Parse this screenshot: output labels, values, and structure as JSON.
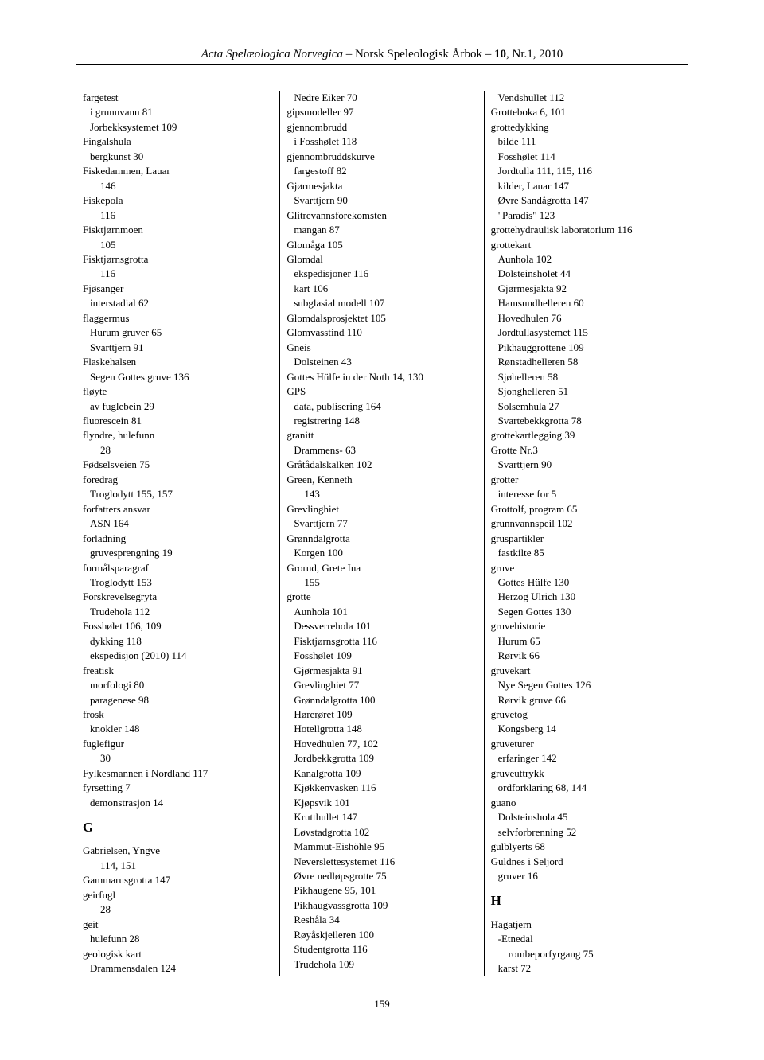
{
  "header": {
    "title_italic": "Acta Spelæologica Norvegica",
    "separator1": " – ",
    "subtitle": "Norsk Speleologisk Årbok",
    "separator2": " – ",
    "volume": "10",
    "issue": ", Nr.1, 2010"
  },
  "page_number": "159",
  "columns": [
    {
      "entries": [
        {
          "t": "fargetest",
          "l": 0
        },
        {
          "t": "i grunnvann  81",
          "l": 1
        },
        {
          "t": "Jorbekksystemet  109",
          "l": 1
        },
        {
          "t": "Fingalshula",
          "l": 0
        },
        {
          "t": "bergkunst  30",
          "l": 1
        },
        {
          "t": "Fiskedammen, Lauar",
          "l": 0
        },
        {
          "t": "146",
          "l": 2
        },
        {
          "t": "Fiskepola",
          "l": 0
        },
        {
          "t": "116",
          "l": 2
        },
        {
          "t": "Fisktjørnmoen",
          "l": 0
        },
        {
          "t": "105",
          "l": 2
        },
        {
          "t": "Fisktjørnsgrotta",
          "l": 0
        },
        {
          "t": "116",
          "l": 2
        },
        {
          "t": "Fjøsanger",
          "l": 0
        },
        {
          "t": "interstadial  62",
          "l": 1
        },
        {
          "t": "flaggermus",
          "l": 0
        },
        {
          "t": "Hurum gruver  65",
          "l": 1
        },
        {
          "t": "Svarttjern  91",
          "l": 1
        },
        {
          "t": "Flaskehalsen",
          "l": 0
        },
        {
          "t": "Segen Gottes gruve  136",
          "l": 1
        },
        {
          "t": "fløyte",
          "l": 0
        },
        {
          "t": "av fuglebein  29",
          "l": 1
        },
        {
          "t": "fluorescein  81",
          "l": 0
        },
        {
          "t": "flyndre, hulefunn",
          "l": 0
        },
        {
          "t": "28",
          "l": 2
        },
        {
          "t": "Fødselsveien  75",
          "l": 0
        },
        {
          "t": "foredrag",
          "l": 0
        },
        {
          "t": "Troglodytt  155, 157",
          "l": 1
        },
        {
          "t": "forfatters ansvar",
          "l": 0
        },
        {
          "t": "ASN  164",
          "l": 1
        },
        {
          "t": "forladning",
          "l": 0
        },
        {
          "t": "gruvesprengning  19",
          "l": 1
        },
        {
          "t": "formålsparagraf",
          "l": 0
        },
        {
          "t": "Troglodytt  153",
          "l": 1
        },
        {
          "t": "Forskrevelsegryta",
          "l": 0
        },
        {
          "t": "Trudehola  112",
          "l": 1
        },
        {
          "t": "Fosshølet  106, 109",
          "l": 0
        },
        {
          "t": "dykking  118",
          "l": 1
        },
        {
          "t": "ekspedisjon (2010)  114",
          "l": 1
        },
        {
          "t": "freatisk",
          "l": 0
        },
        {
          "t": "morfologi  80",
          "l": 1
        },
        {
          "t": "paragenese  98",
          "l": 1
        },
        {
          "t": "frosk",
          "l": 0
        },
        {
          "t": "knokler  148",
          "l": 1
        },
        {
          "t": "fuglefigur",
          "l": 0
        },
        {
          "t": "30",
          "l": 2
        },
        {
          "t": "Fylkesmannen i Nordland  117",
          "l": 0
        },
        {
          "t": "fyrsetting  7",
          "l": 0
        },
        {
          "t": "demonstrasjon  14",
          "l": 1
        },
        {
          "t": "G",
          "l": 0,
          "letter": true
        },
        {
          "t": "Gabrielsen, Yngve",
          "l": 0
        },
        {
          "t": "114, 151",
          "l": 2
        },
        {
          "t": "Gammarusgrotta  147",
          "l": 0
        },
        {
          "t": "geirfugl",
          "l": 0
        },
        {
          "t": "28",
          "l": 2
        },
        {
          "t": "geit",
          "l": 0
        },
        {
          "t": "hulefunn  28",
          "l": 1
        },
        {
          "t": "geologisk kart",
          "l": 0
        },
        {
          "t": "Drammensdalen  124",
          "l": 1
        }
      ]
    },
    {
      "entries": [
        {
          "t": "Nedre Eiker  70",
          "l": 1
        },
        {
          "t": "gipsmodeller  97",
          "l": 0
        },
        {
          "t": "gjennombrudd",
          "l": 0
        },
        {
          "t": "i Fosshølet  118",
          "l": 1
        },
        {
          "t": "gjennombruddskurve",
          "l": 0
        },
        {
          "t": "fargestoff  82",
          "l": 1
        },
        {
          "t": "Gjørmesjakta",
          "l": 0
        },
        {
          "t": "Svarttjern  90",
          "l": 1
        },
        {
          "t": "Glitrevannsforekomsten",
          "l": 0
        },
        {
          "t": "mangan  87",
          "l": 1
        },
        {
          "t": "Glomåga  105",
          "l": 0
        },
        {
          "t": "Glomdal",
          "l": 0
        },
        {
          "t": "ekspedisjoner  116",
          "l": 1
        },
        {
          "t": "kart  106",
          "l": 1
        },
        {
          "t": "subglasial modell  107",
          "l": 1
        },
        {
          "t": "Glomdalsprosjektet  105",
          "l": 0
        },
        {
          "t": "Glomvasstind  110",
          "l": 0
        },
        {
          "t": "Gneis",
          "l": 0
        },
        {
          "t": "Dolsteinen  43",
          "l": 1
        },
        {
          "t": "Gottes Hülfe in der Noth  14, 130",
          "l": 0
        },
        {
          "t": "GPS",
          "l": 0
        },
        {
          "t": "data, publisering  164",
          "l": 1
        },
        {
          "t": "registrering  148",
          "l": 1
        },
        {
          "t": "granitt",
          "l": 0
        },
        {
          "t": "Drammens-  63",
          "l": 1
        },
        {
          "t": "Gråtådalskalken  102",
          "l": 0
        },
        {
          "t": "Green, Kenneth",
          "l": 0
        },
        {
          "t": "143",
          "l": 2
        },
        {
          "t": "Grevlinghiet",
          "l": 0
        },
        {
          "t": "Svarttjern  77",
          "l": 1
        },
        {
          "t": "Grønndalgrotta",
          "l": 0
        },
        {
          "t": "Korgen  100",
          "l": 1
        },
        {
          "t": "Grorud, Grete Ina",
          "l": 0
        },
        {
          "t": "155",
          "l": 2
        },
        {
          "t": "grotte",
          "l": 0
        },
        {
          "t": "Aunhola  101",
          "l": 1
        },
        {
          "t": "Dessverrehola  101",
          "l": 1
        },
        {
          "t": "Fisktjørnsgrotta  116",
          "l": 1
        },
        {
          "t": "Fosshølet  109",
          "l": 1
        },
        {
          "t": "Gjørmesjakta  91",
          "l": 1
        },
        {
          "t": "Grevlinghiet  77",
          "l": 1
        },
        {
          "t": "Grønndalgrotta  100",
          "l": 1
        },
        {
          "t": "Hørerøret  109",
          "l": 1
        },
        {
          "t": "Hotellgrotta  148",
          "l": 1
        },
        {
          "t": "Hovedhulen  77, 102",
          "l": 1
        },
        {
          "t": "Jordbekkgrotta  109",
          "l": 1
        },
        {
          "t": "Kanalgrotta  109",
          "l": 1
        },
        {
          "t": "Kjøkkenvasken  116",
          "l": 1
        },
        {
          "t": "Kjøpsvik  101",
          "l": 1
        },
        {
          "t": "Krutthullet  147",
          "l": 1
        },
        {
          "t": "Løvstadgrotta  102",
          "l": 1
        },
        {
          "t": "Mammut-Eishöhle  95",
          "l": 1
        },
        {
          "t": "Neverslettesystemet  116",
          "l": 1
        },
        {
          "t": "Øvre nedløpsgrotte  75",
          "l": 1
        },
        {
          "t": "Pikhaugene  95, 101",
          "l": 1
        },
        {
          "t": "Pikhaugvassgrotta  109",
          "l": 1
        },
        {
          "t": "Reshåla  34",
          "l": 1
        },
        {
          "t": "Røyåskjelleren  100",
          "l": 1
        },
        {
          "t": "Studentgrotta  116",
          "l": 1
        },
        {
          "t": "Trudehola  109",
          "l": 1
        }
      ]
    },
    {
      "entries": [
        {
          "t": "Vendshullet  112",
          "l": 1
        },
        {
          "t": "Grotteboka  6, 101",
          "l": 0
        },
        {
          "t": "grottedykking",
          "l": 0
        },
        {
          "t": "bilde  111",
          "l": 1
        },
        {
          "t": "Fosshølet  114",
          "l": 1
        },
        {
          "t": "Jordtulla  111, 115, 116",
          "l": 1
        },
        {
          "t": "kilder, Lauar  147",
          "l": 1
        },
        {
          "t": "Øvre Sandågrotta  147",
          "l": 1
        },
        {
          "t": "\"Paradis\"  123",
          "l": 1
        },
        {
          "t": "grottehydraulisk laboratorium  116",
          "l": 0
        },
        {
          "t": "grottekart",
          "l": 0
        },
        {
          "t": "Aunhola  102",
          "l": 1
        },
        {
          "t": "Dolsteinsholet  44",
          "l": 1
        },
        {
          "t": "Gjørmesjakta  92",
          "l": 1
        },
        {
          "t": "Hamsundhelleren  60",
          "l": 1
        },
        {
          "t": "Hovedhulen  76",
          "l": 1
        },
        {
          "t": "Jordtullasystemet  115",
          "l": 1
        },
        {
          "t": "Pikhauggrottene  109",
          "l": 1
        },
        {
          "t": "Rønstadhelleren  58",
          "l": 1
        },
        {
          "t": "Sjøhelleren  58",
          "l": 1
        },
        {
          "t": "Sjonghelleren  51",
          "l": 1
        },
        {
          "t": "Solsemhula  27",
          "l": 1
        },
        {
          "t": "Svartebekkgrotta  78",
          "l": 1
        },
        {
          "t": "grottekartlegging  39",
          "l": 0
        },
        {
          "t": "Grotte Nr.3",
          "l": 0
        },
        {
          "t": "Svarttjern  90",
          "l": 1
        },
        {
          "t": "grotter",
          "l": 0
        },
        {
          "t": "interesse for  5",
          "l": 1
        },
        {
          "t": "Grottolf, program  65",
          "l": 0
        },
        {
          "t": "grunnvannspeil  102",
          "l": 0
        },
        {
          "t": "gruspartikler",
          "l": 0
        },
        {
          "t": "fastkilte  85",
          "l": 1
        },
        {
          "t": "gruve",
          "l": 0
        },
        {
          "t": "Gottes Hülfe  130",
          "l": 1
        },
        {
          "t": "Herzog Ulrich  130",
          "l": 1
        },
        {
          "t": "Segen Gottes  130",
          "l": 1
        },
        {
          "t": "gruvehistorie",
          "l": 0
        },
        {
          "t": "Hurum  65",
          "l": 1
        },
        {
          "t": "Rørvik  66",
          "l": 1
        },
        {
          "t": "gruvekart",
          "l": 0
        },
        {
          "t": "Nye Segen Gottes  126",
          "l": 1
        },
        {
          "t": "Rørvik gruve  66",
          "l": 1
        },
        {
          "t": "gruvetog",
          "l": 0
        },
        {
          "t": "Kongsberg  14",
          "l": 1
        },
        {
          "t": "gruveturer",
          "l": 0
        },
        {
          "t": "erfaringer  142",
          "l": 1
        },
        {
          "t": "gruveuttrykk",
          "l": 0
        },
        {
          "t": "ordforklaring  68, 144",
          "l": 1
        },
        {
          "t": "guano",
          "l": 0
        },
        {
          "t": "Dolsteinshola  45",
          "l": 1
        },
        {
          "t": "selvforbrenning  52",
          "l": 1
        },
        {
          "t": "gulblyerts  68",
          "l": 0
        },
        {
          "t": "Guldnes i Seljord",
          "l": 0
        },
        {
          "t": "gruver  16",
          "l": 1
        },
        {
          "t": "H",
          "l": 0,
          "letter": true
        },
        {
          "t": "Hagatjern",
          "l": 0
        },
        {
          "t": "-Etnedal",
          "l": 1
        },
        {
          "t": "rombeporfyrgang  75",
          "l": 2
        },
        {
          "t": "karst  72",
          "l": 1
        }
      ]
    }
  ]
}
